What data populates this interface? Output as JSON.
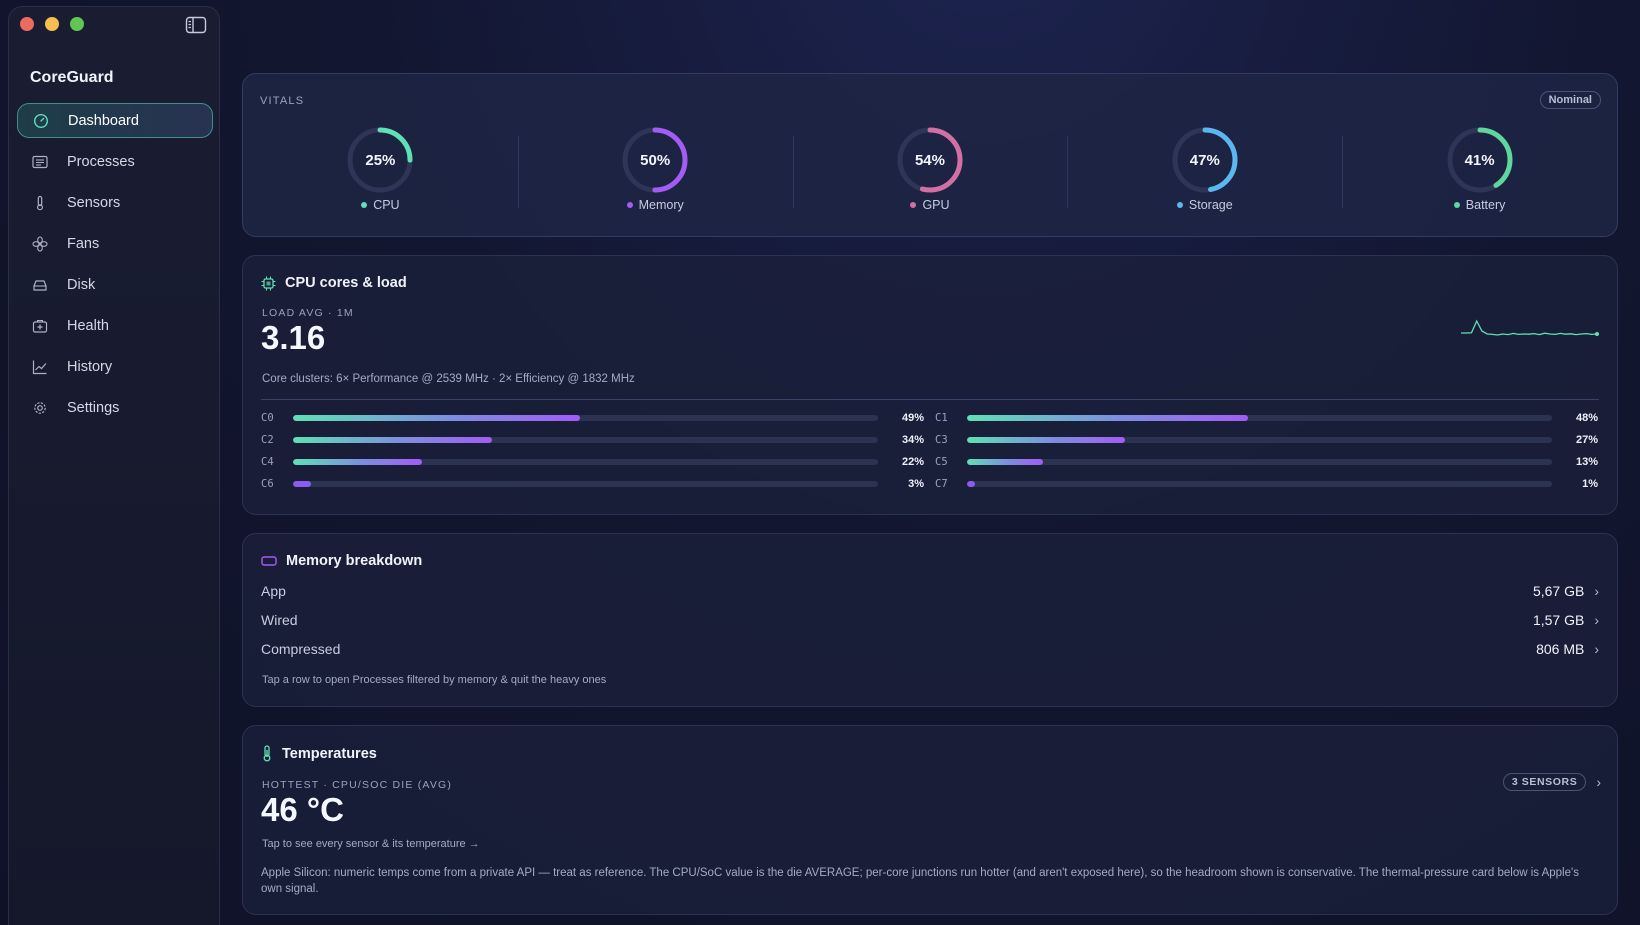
{
  "app": {
    "name": "CoreGuard"
  },
  "sidebar": {
    "items": [
      {
        "label": "Dashboard",
        "icon": "gauge-icon",
        "active": true
      },
      {
        "label": "Processes",
        "icon": "list-icon"
      },
      {
        "label": "Sensors",
        "icon": "thermometer-icon"
      },
      {
        "label": "Fans",
        "icon": "fan-icon"
      },
      {
        "label": "Disk",
        "icon": "disk-icon"
      },
      {
        "label": "Health",
        "icon": "medical-kit-icon"
      },
      {
        "label": "History",
        "icon": "chart-icon"
      },
      {
        "label": "Settings",
        "icon": "gear-icon"
      }
    ]
  },
  "vitals": {
    "label": "VITALS",
    "status": "Nominal",
    "items": [
      {
        "name": "CPU",
        "percent": 25,
        "value_text": "25%",
        "color": "#5fe0b5"
      },
      {
        "name": "Memory",
        "percent": 50,
        "value_text": "50%",
        "color": "#a35cf5"
      },
      {
        "name": "GPU",
        "percent": 54,
        "value_text": "54%",
        "color": "#d46fa6"
      },
      {
        "name": "Storage",
        "percent": 47,
        "value_text": "47%",
        "color": "#5ab8f0"
      },
      {
        "name": "Battery",
        "percent": 41,
        "value_text": "41%",
        "color": "#5fd69b"
      }
    ]
  },
  "cpu": {
    "title": "CPU cores & load",
    "load_label": "LOAD AVG · 1M",
    "load_value": "3.16",
    "clusters": "Core clusters: 6× Performance @ 2539 MHz · 2× Efficiency @ 1832 MHz",
    "sparkline": [
      0.35,
      0.35,
      0.36,
      0.95,
      0.45,
      0.3,
      0.28,
      0.25,
      0.3,
      0.27,
      0.33,
      0.28,
      0.3,
      0.29,
      0.32,
      0.27,
      0.34,
      0.3,
      0.28,
      0.33,
      0.29,
      0.31,
      0.27,
      0.3,
      0.32,
      0.28,
      0.3
    ],
    "cores": [
      {
        "label": "C0",
        "percent": 49,
        "text": "49%"
      },
      {
        "label": "C1",
        "percent": 48,
        "text": "48%"
      },
      {
        "label": "C2",
        "percent": 34,
        "text": "34%"
      },
      {
        "label": "C3",
        "percent": 27,
        "text": "27%"
      },
      {
        "label": "C4",
        "percent": 22,
        "text": "22%"
      },
      {
        "label": "C5",
        "percent": 13,
        "text": "13%"
      },
      {
        "label": "C6",
        "percent": 3,
        "text": "3%"
      },
      {
        "label": "C7",
        "percent": 1,
        "text": "1%"
      }
    ]
  },
  "memory": {
    "title": "Memory breakdown",
    "rows": [
      {
        "name": "App",
        "value": "5,67 GB"
      },
      {
        "name": "Wired",
        "value": "1,57 GB"
      },
      {
        "name": "Compressed",
        "value": "806 MB"
      }
    ],
    "hint": "Tap a row to open Processes filtered by memory & quit the heavy ones"
  },
  "temps": {
    "title": "Temperatures",
    "hottest_label": "HOTTEST · CPU/SOC DIE (AVG)",
    "hottest_value": "46 °C",
    "sensors_badge": "3 SENSORS",
    "tap_hint": "Tap to see every sensor & its temperature →",
    "note": "Apple Silicon: numeric temps come from a private API — treat as reference. The CPU/SoC value is the die AVERAGE; per-core junctions run hotter (and aren't exposed here), so the headroom shown is conservative. The thermal-pressure card below is Apple's own signal."
  },
  "colors": {
    "accent_teal": "#5fe0b5",
    "accent_purple": "#a35cf5",
    "background": "#121630"
  }
}
